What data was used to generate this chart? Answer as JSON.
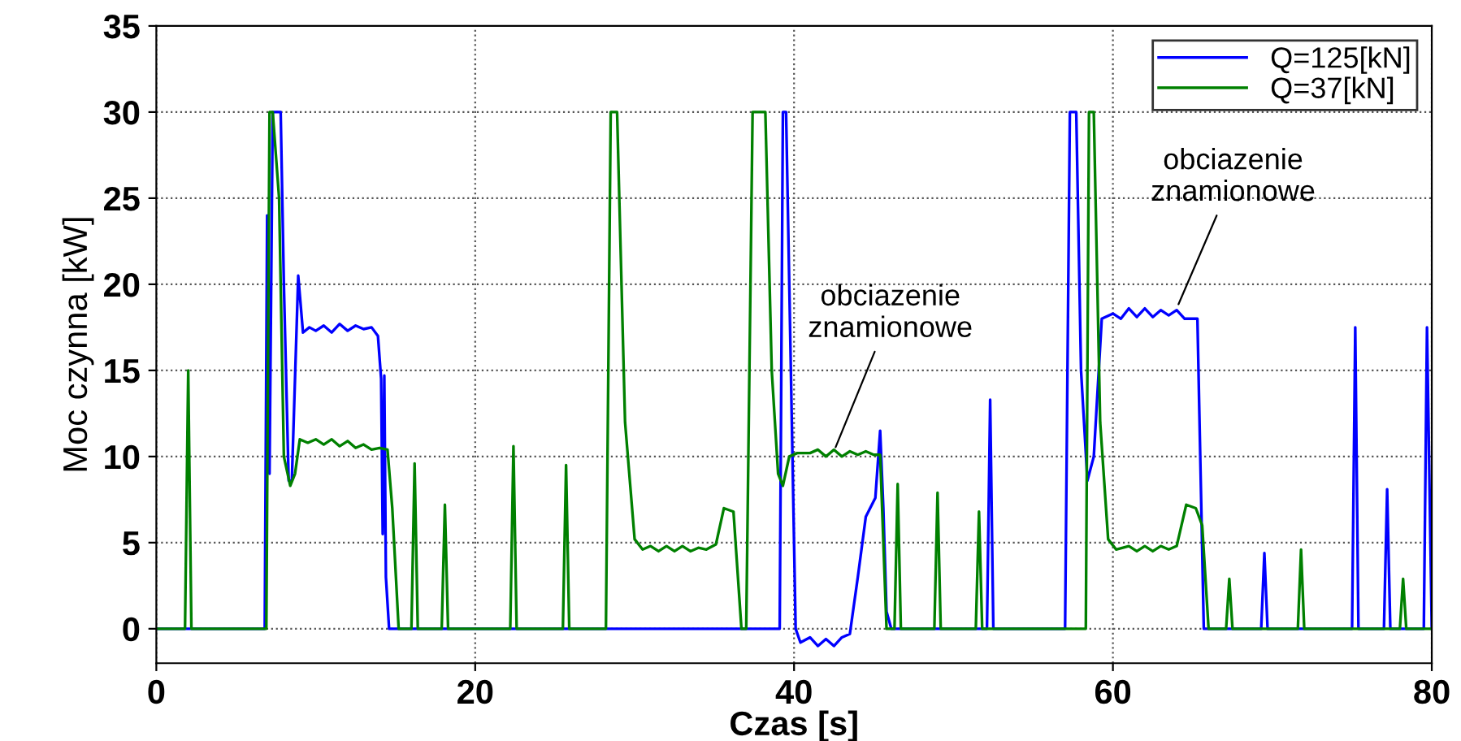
{
  "chart_data": {
    "type": "line",
    "xlabel": "Czas [s]",
    "ylabel": "Moc czynna [kW]",
    "xlim": [
      0,
      80
    ],
    "ylim": [
      -2,
      35
    ],
    "xticks": [
      0,
      20,
      40,
      60,
      80
    ],
    "yticks": [
      0,
      5,
      10,
      15,
      20,
      25,
      30,
      35
    ],
    "grid": true,
    "legend": "top right",
    "line_style": "solid",
    "series": [
      {
        "name": "Q=125[kN]",
        "color": "#0000ff",
        "x": [
          0,
          6.8,
          6.95,
          7.1,
          7.3,
          7.8,
          8.0,
          8.3,
          8.5,
          8.9,
          9.2,
          9.6,
          10,
          10.5,
          11,
          11.5,
          12,
          12.5,
          13,
          13.5,
          13.9,
          14.1,
          14.2,
          14.3,
          14.4,
          14.6,
          14.9,
          39.1,
          39.3,
          39.5,
          39.8,
          40.1,
          40.4,
          41,
          41.5,
          42,
          42.5,
          43,
          43.5,
          44,
          44.5,
          45.1,
          45.4,
          45.6,
          45.8,
          46.1,
          52.1,
          52.3,
          52.5,
          57.0,
          57.3,
          57.7,
          58.0,
          58.4,
          58.8,
          59.3,
          60,
          60.5,
          61,
          61.5,
          62,
          62.5,
          63,
          63.5,
          64,
          64.5,
          65.3,
          65.7,
          66.2,
          69.3,
          69.5,
          69.7,
          75.0,
          75.2,
          75.4,
          77.0,
          77.2,
          77.4,
          79.5,
          79.7,
          80
        ],
        "values": [
          0,
          0,
          24,
          9,
          30,
          30,
          20,
          8.6,
          8.6,
          20.5,
          17.2,
          17.5,
          17.3,
          17.6,
          17.2,
          17.7,
          17.3,
          17.6,
          17.4,
          17.5,
          17,
          14.5,
          5.5,
          14.7,
          3,
          0,
          0,
          0,
          30,
          30,
          15,
          0,
          -0.8,
          -0.5,
          -1,
          -0.6,
          -1,
          -0.5,
          -0.3,
          3,
          6.5,
          7.6,
          11.5,
          7,
          1,
          0,
          0,
          13.3,
          0,
          0,
          30,
          30,
          15,
          8.6,
          10,
          18,
          18.3,
          18,
          18.6,
          18.1,
          18.6,
          18.1,
          18.5,
          18.2,
          18.5,
          18,
          18,
          0,
          0,
          0,
          4.4,
          0,
          0,
          17.5,
          0,
          0,
          8.1,
          0,
          0,
          17.5,
          0
        ]
      },
      {
        "name": "Q=37[kN]",
        "color": "#008000",
        "x": [
          0,
          1.8,
          2.0,
          2.2,
          2.4,
          6.9,
          7.1,
          7.3,
          7.7,
          8.0,
          8.4,
          8.7,
          9.0,
          9.5,
          10,
          10.5,
          11,
          11.5,
          12,
          12.5,
          13,
          13.5,
          14,
          14.5,
          14.8,
          15.2,
          16.0,
          16.2,
          16.4,
          17.9,
          18.1,
          18.3,
          22.2,
          22.4,
          22.6,
          25.5,
          25.7,
          25.9,
          28.2,
          28.5,
          28.9,
          29.4,
          30,
          30.5,
          31,
          31.5,
          32,
          32.5,
          33,
          33.5,
          34,
          34.5,
          35.1,
          35.6,
          36.2,
          36.7,
          37.0,
          37.4,
          37.6,
          38.2,
          38.6,
          39.0,
          39.3,
          39.7,
          40.2,
          41,
          41.5,
          42,
          42.5,
          43,
          43.5,
          44,
          44.5,
          45,
          45.4,
          45.8,
          46.3,
          46.5,
          46.7,
          48.8,
          49.0,
          49.2,
          51.4,
          51.6,
          51.8,
          58.3,
          58.5,
          58.8,
          59.2,
          59.7,
          60.2,
          61,
          61.5,
          62,
          62.5,
          63,
          63.5,
          64,
          64.6,
          65.2,
          65.6,
          66.0,
          66.5,
          67.1,
          67.3,
          67.5,
          71.6,
          71.8,
          72.0,
          78.0,
          78.2,
          78.4,
          80
        ],
        "values": [
          0,
          0,
          15,
          0,
          0,
          0,
          30,
          30,
          25,
          10,
          8.3,
          9,
          11,
          10.8,
          11,
          10.7,
          11,
          10.6,
          10.9,
          10.5,
          10.7,
          10.4,
          10.5,
          10.4,
          7,
          0,
          0,
          9.6,
          0,
          0,
          7.2,
          0,
          0,
          10.6,
          0,
          0,
          9.5,
          0,
          0,
          30,
          30,
          12,
          5.2,
          4.6,
          4.8,
          4.5,
          4.8,
          4.5,
          4.8,
          4.5,
          4.7,
          4.6,
          4.9,
          7,
          6.8,
          0,
          0,
          30,
          30,
          30,
          15,
          9,
          8.3,
          10,
          10.2,
          10.2,
          10.4,
          10,
          10.4,
          10,
          10.3,
          10.1,
          10.3,
          10.1,
          10.1,
          0,
          0,
          8.4,
          0,
          0,
          7.9,
          0,
          0,
          6.8,
          0,
          0,
          30,
          30,
          12,
          5.2,
          4.6,
          4.8,
          4.5,
          4.8,
          4.5,
          4.8,
          4.6,
          4.8,
          7.2,
          7,
          6,
          0,
          0,
          0,
          2.9,
          0,
          0,
          4.6,
          0,
          0,
          2.9,
          0,
          0
        ]
      }
    ],
    "annotations": [
      {
        "text": "obciazenie\nznamionowe",
        "x": 42.5,
        "y": 10.3
      },
      {
        "text": "obciazenie\nznamionowe",
        "x": 64,
        "y": 18.6
      }
    ]
  }
}
